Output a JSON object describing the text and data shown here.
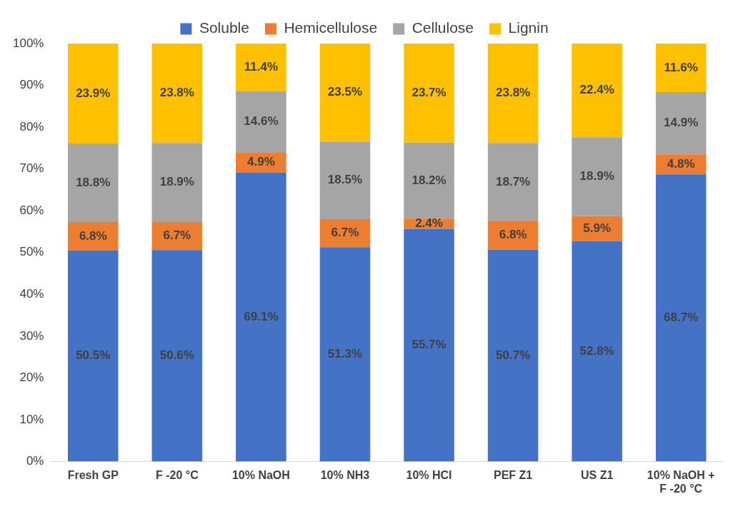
{
  "chart_data": {
    "type": "bar",
    "stacked": true,
    "legend": "top",
    "grid": false,
    "categories": [
      "Fresh GP",
      "F -20 °C",
      "10% NaOH",
      "10% NH3",
      "10% HCl",
      "PEF Z1",
      "US Z1",
      "10% NaOH +\nF -20 °C"
    ],
    "series": [
      {
        "name": "Soluble",
        "color": "#4472c4",
        "values": [
          50.5,
          50.6,
          69.1,
          51.3,
          55.7,
          50.7,
          52.8,
          68.7
        ],
        "value_labels": [
          "50.5%",
          "50.6%",
          "69.1%",
          "51.3%",
          "55.7%",
          "50.7%",
          "52.8%",
          "68.7%"
        ]
      },
      {
        "name": "Hemicellulose",
        "color": "#ed7d31",
        "values": [
          6.8,
          6.7,
          4.9,
          6.7,
          2.4,
          6.8,
          5.9,
          4.8
        ],
        "value_labels": [
          "6.8%",
          "6.7%",
          "4.9%",
          "6.7%",
          "2.4%",
          "6.8%",
          "5.9%",
          "4.8%"
        ]
      },
      {
        "name": "Cellulose",
        "color": "#a5a5a5",
        "values": [
          18.8,
          18.9,
          14.6,
          18.5,
          18.2,
          18.7,
          18.9,
          14.9
        ],
        "value_labels": [
          "18.8%",
          "18.9%",
          "14.6%",
          "18.5%",
          "18.2%",
          "18.7%",
          "18.9%",
          "14.9%"
        ]
      },
      {
        "name": "Lignin",
        "color": "#ffc000",
        "values": [
          23.9,
          23.8,
          11.4,
          23.5,
          23.7,
          23.8,
          22.4,
          11.6
        ],
        "value_labels": [
          "23.9%",
          "23.8%",
          "11.4%",
          "23.5%",
          "23.7%",
          "23.8%",
          "22.4%",
          "11.6%"
        ]
      }
    ],
    "ylim": [
      0,
      100
    ],
    "yticks": [
      {
        "value": 0,
        "label": "0%"
      },
      {
        "value": 10,
        "label": "10%"
      },
      {
        "value": 20,
        "label": "20%"
      },
      {
        "value": 30,
        "label": "30%"
      },
      {
        "value": 40,
        "label": "40%"
      },
      {
        "value": 50,
        "label": "50%"
      },
      {
        "value": 60,
        "label": "60%"
      },
      {
        "value": 70,
        "label": "70%"
      },
      {
        "value": 80,
        "label": "80%"
      },
      {
        "value": 90,
        "label": "90%"
      },
      {
        "value": 100,
        "label": "100%"
      }
    ]
  }
}
